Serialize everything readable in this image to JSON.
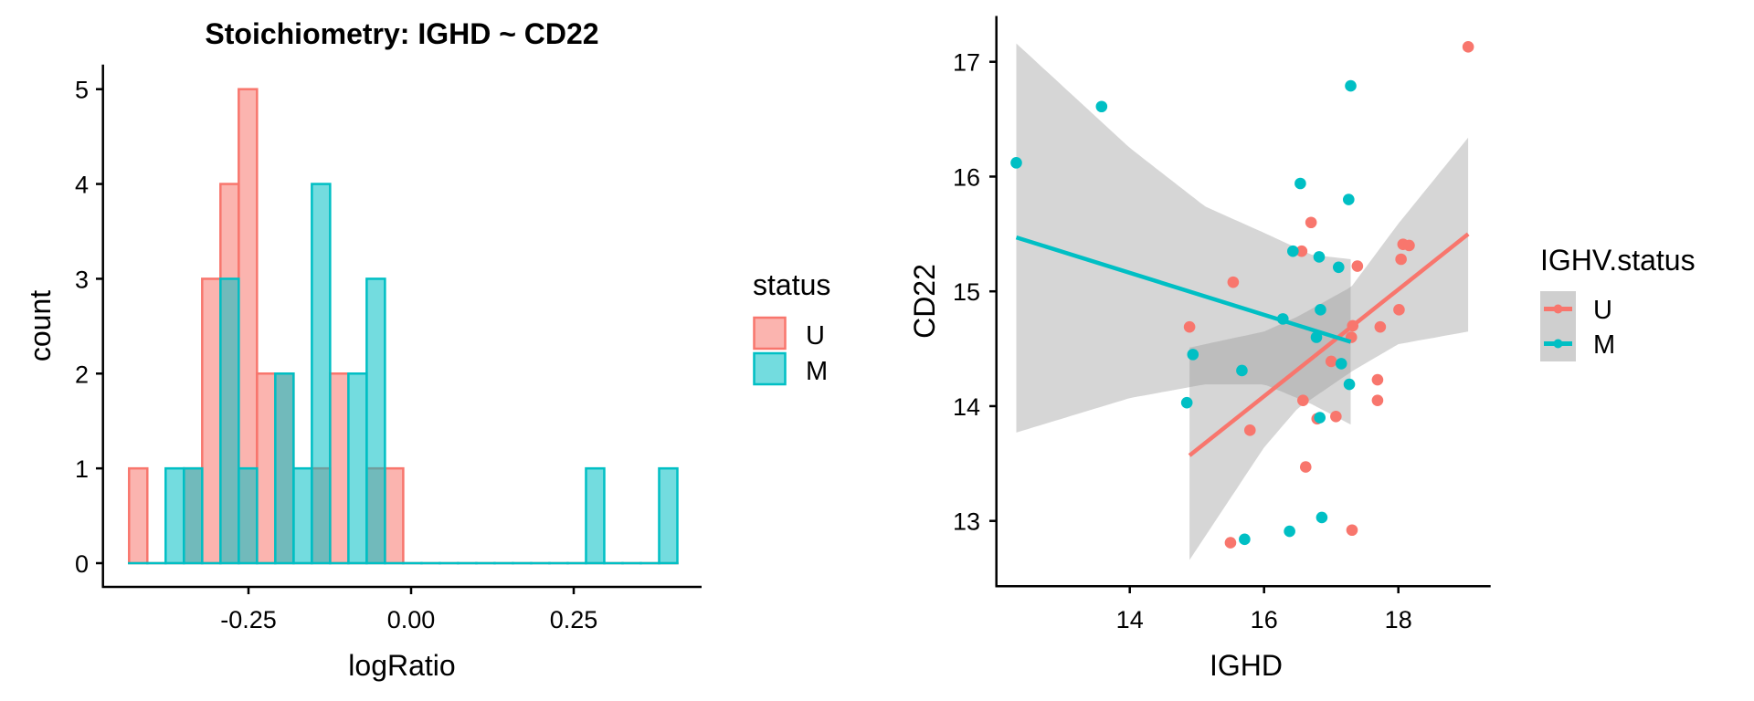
{
  "colors": {
    "U": "#F8766D",
    "M": "#00BFC4",
    "band": "#999999",
    "axis": "#000000"
  },
  "chart_data": [
    {
      "type": "histogram",
      "title": "Stoichiometry: IGHD ~ CD22",
      "xlabel": "logRatio",
      "ylabel": "count",
      "xlim": [
        -0.476,
        0.446
      ],
      "ylim": [
        -0.25,
        5.26
      ],
      "xticks": [
        -0.25,
        0.0,
        0.25
      ],
      "xtick_labels": [
        "-0.25",
        "0.00",
        "0.25"
      ],
      "yticks": [
        0,
        1,
        2,
        3,
        4,
        5
      ],
      "ytick_labels": [
        "0",
        "1",
        "2",
        "3",
        "4",
        "5"
      ],
      "bin_start": -0.4336,
      "bin_width": 0.0281,
      "series": [
        {
          "name": "U",
          "counts": [
            1,
            0,
            0,
            1,
            3,
            4,
            5,
            2,
            2,
            0,
            1,
            2,
            0,
            1,
            1,
            0,
            0,
            0,
            0,
            0,
            0,
            0,
            0,
            0,
            0,
            0,
            0,
            0,
            0,
            0
          ]
        },
        {
          "name": "M",
          "counts": [
            0,
            0,
            1,
            1,
            0,
            3,
            1,
            0,
            2,
            1,
            4,
            0,
            2,
            3,
            0,
            0,
            0,
            0,
            0,
            0,
            0,
            0,
            0,
            0,
            0,
            1,
            0,
            0,
            0,
            1
          ]
        }
      ],
      "legend": {
        "title": "status",
        "entries": [
          "U",
          "M"
        ],
        "position": "right"
      },
      "grid": false
    },
    {
      "type": "scatter",
      "title": "",
      "xlabel": "IGHD",
      "ylabel": "CD22",
      "xlim": [
        12.02,
        19.33
      ],
      "ylim": [
        12.43,
        17.39
      ],
      "xticks": [
        14,
        16,
        18
      ],
      "xtick_labels": [
        "14",
        "16",
        "18"
      ],
      "yticks": [
        13,
        14,
        15,
        16,
        17
      ],
      "ytick_labels": [
        "13",
        "14",
        "15",
        "16",
        "17"
      ],
      "series": [
        {
          "name": "U",
          "points": [
            [
              19.04,
              17.13
            ],
            [
              16.7,
              15.6
            ],
            [
              16.56,
              15.35
            ],
            [
              17.39,
              15.22
            ],
            [
              15.54,
              15.08
            ],
            [
              18.07,
              15.41
            ],
            [
              18.16,
              15.4
            ],
            [
              18.04,
              15.28
            ],
            [
              18.01,
              14.84
            ],
            [
              17.73,
              14.69
            ],
            [
              17.32,
              14.7
            ],
            [
              14.89,
              14.69
            ],
            [
              17.3,
              14.6
            ],
            [
              17.0,
              14.39
            ],
            [
              17.69,
              14.23
            ],
            [
              17.69,
              14.05
            ],
            [
              16.58,
              14.05
            ],
            [
              17.07,
              13.91
            ],
            [
              16.79,
              13.89
            ],
            [
              15.79,
              13.79
            ],
            [
              16.62,
              13.47
            ],
            [
              17.31,
              12.92
            ],
            [
              15.5,
              12.81
            ]
          ],
          "fit_line": [
            [
              14.89,
              13.57
            ],
            [
              19.04,
              15.5
            ]
          ],
          "ci_band": {
            "x": [
              14.89,
              16.0,
              16.5,
              17.3,
              18.0,
              19.04
            ],
            "upper": [
              14.51,
              14.65,
              14.78,
              15.04,
              15.59,
              16.34
            ],
            "lower": [
              12.66,
              13.64,
              13.98,
              14.3,
              14.54,
              14.65
            ]
          }
        },
        {
          "name": "M",
          "points": [
            [
              12.31,
              16.12
            ],
            [
              13.58,
              16.61
            ],
            [
              17.29,
              16.79
            ],
            [
              16.54,
              15.94
            ],
            [
              17.26,
              15.8
            ],
            [
              16.43,
              15.35
            ],
            [
              16.82,
              15.3
            ],
            [
              17.11,
              15.21
            ],
            [
              16.28,
              14.76
            ],
            [
              16.84,
              14.84
            ],
            [
              16.78,
              14.6
            ],
            [
              14.94,
              14.45
            ],
            [
              15.67,
              14.31
            ],
            [
              17.15,
              14.37
            ],
            [
              17.27,
              14.19
            ],
            [
              14.85,
              14.03
            ],
            [
              16.83,
              13.9
            ],
            [
              16.86,
              13.03
            ],
            [
              16.38,
              12.91
            ],
            [
              15.71,
              12.84
            ]
          ],
          "fit_line": [
            [
              12.31,
              15.47
            ],
            [
              17.29,
              14.56
            ]
          ],
          "ci_band": {
            "x": [
              12.31,
              14.0,
              15.12,
              16.0,
              16.7,
              17.29
            ],
            "upper": [
              17.16,
              16.25,
              15.74,
              15.51,
              15.32,
              15.28
            ],
            "lower": [
              13.77,
              14.07,
              14.19,
              14.19,
              14.02,
              13.84
            ]
          }
        }
      ],
      "legend": {
        "title": "IGHV.status",
        "entries": [
          "U",
          "M"
        ],
        "position": "right"
      },
      "grid": false
    }
  ]
}
